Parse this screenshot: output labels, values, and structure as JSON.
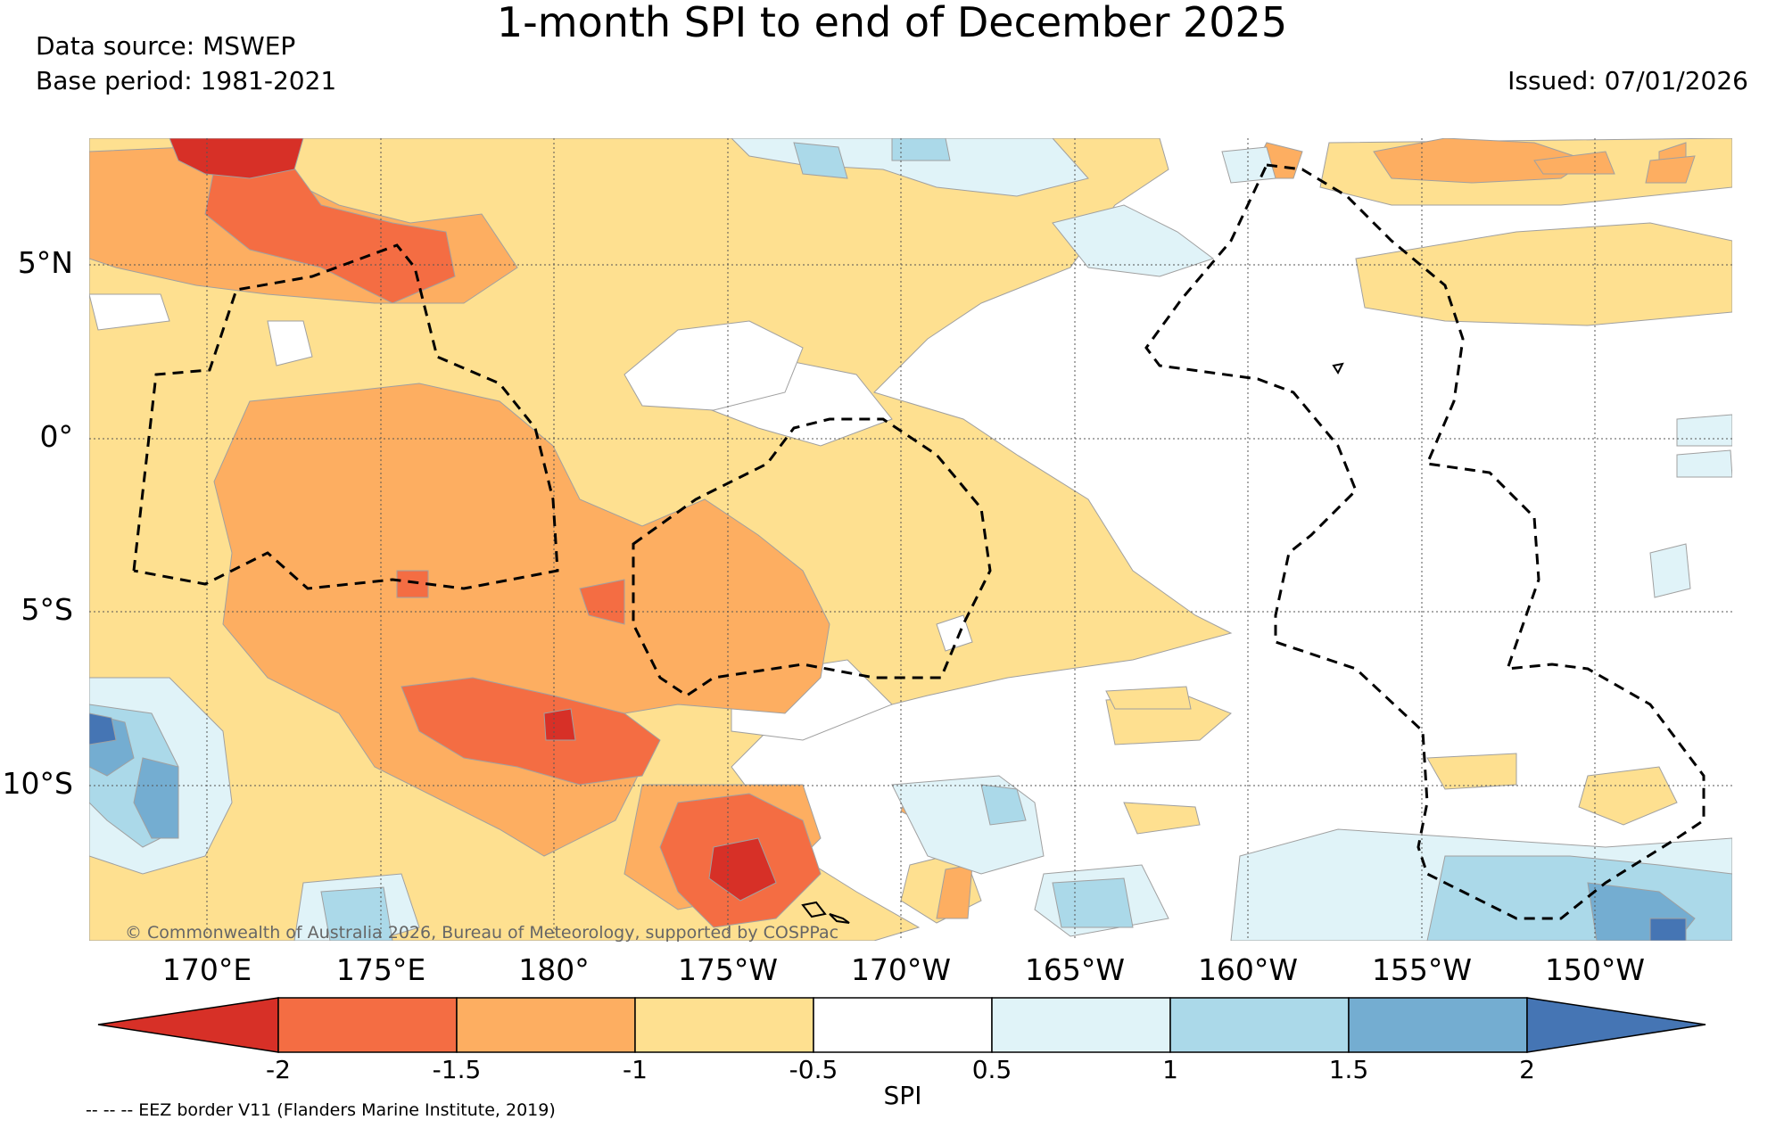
{
  "title": "1-month SPI to end of December 2025",
  "data_source": "Data source: MSWEP",
  "base_period": "Base period: 1981-2021",
  "issued": "Issued: 07/01/2026",
  "copyright": "© Commonwealth of Australia 2026, Bureau of Meteorology, supported by COSPPac",
  "lat_labels": [
    "5°N",
    "0°",
    "5°S",
    "10°S"
  ],
  "lon_labels": [
    "170°E",
    "175°E",
    "180°",
    "175°W",
    "170°W",
    "165°W",
    "160°W",
    "155°W",
    "150°W"
  ],
  "colorbar": {
    "label": "SPI",
    "ticks": [
      "-2",
      "-1.5",
      "-1",
      "-0.5",
      "0.5",
      "1",
      "1.5",
      "2"
    ],
    "colors": {
      "below_-2": "#d73027",
      "-2_to_-1.5": "#f46d43",
      "-1.5_to_-1": "#fdae61",
      "-1_to_-0.5": "#fee090",
      "-0.5_to_0.5": "#ffffff",
      "0.5_to_1": "#e0f3f8",
      "1_to_1.5": "#abd9e9",
      "1.5_to_2": "#74add1",
      "above_2": "#4575b4"
    }
  },
  "legend_note": "-- -- -- EEZ border V11 (Flanders Marine Institute, 2019)"
}
